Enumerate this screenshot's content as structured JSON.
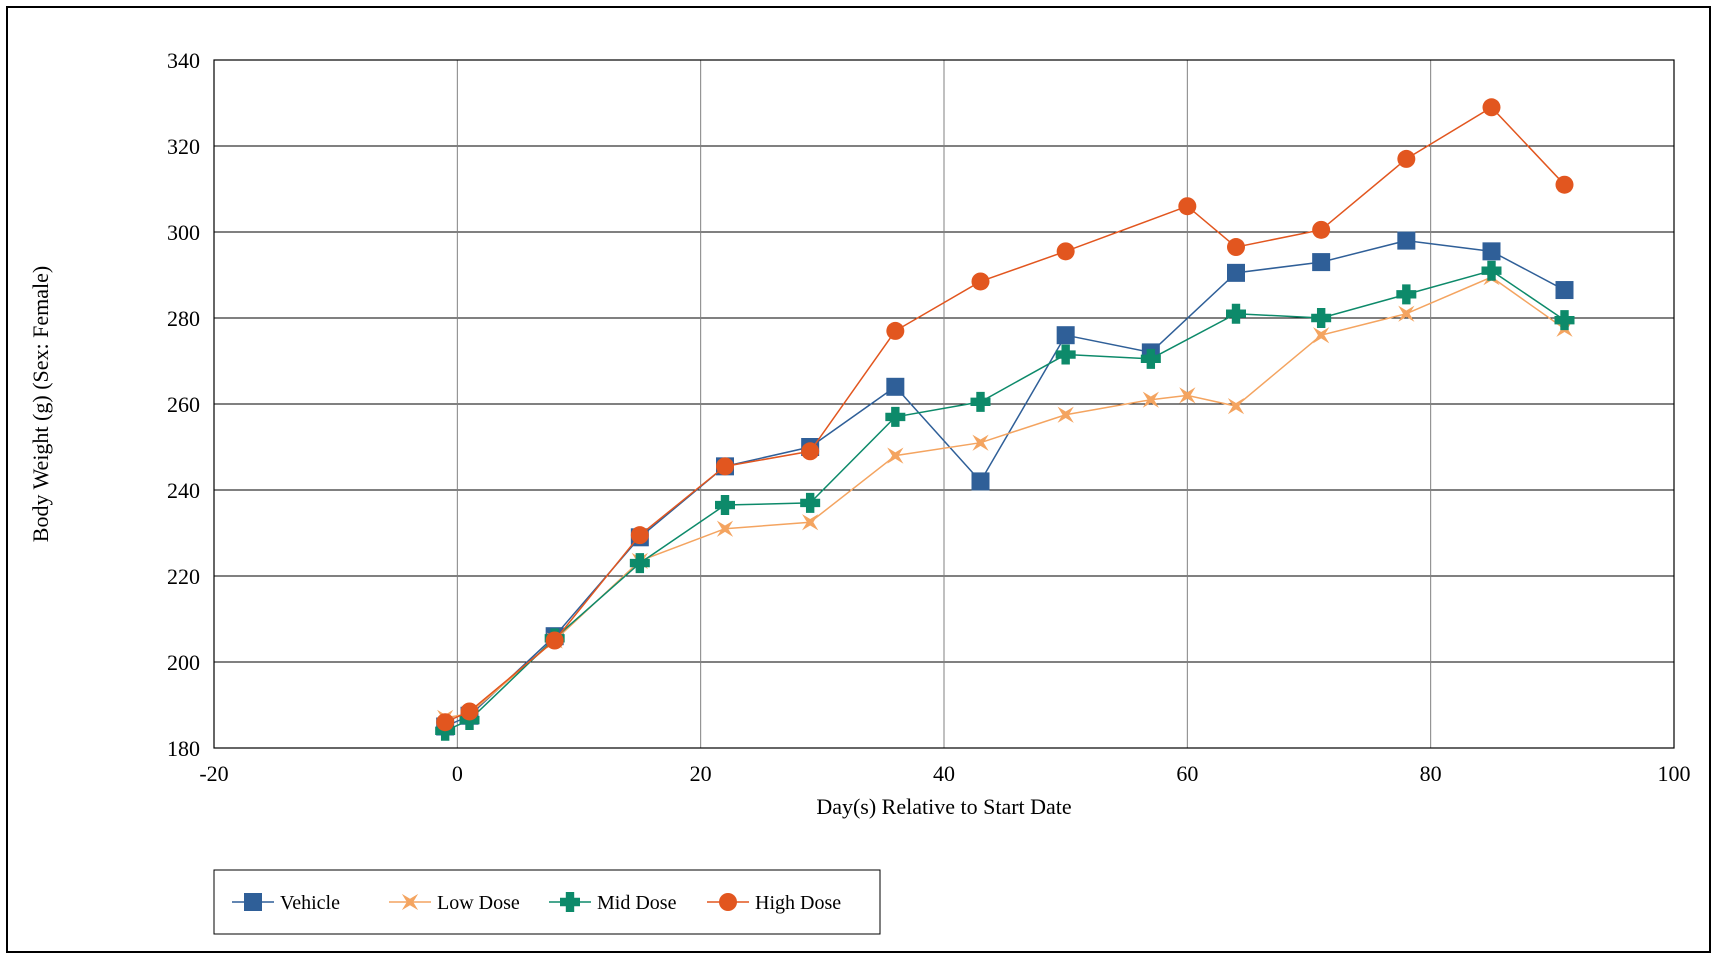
{
  "chart_data": {
    "type": "line",
    "title": "",
    "xlabel": "Day(s) Relative to Start Date",
    "ylabel": "Body Weight (g) (Sex: Female)",
    "xlim": [
      -20,
      100
    ],
    "ylim": [
      180,
      340
    ],
    "xticks": [
      -20,
      0,
      20,
      40,
      60,
      80,
      100
    ],
    "yticks": [
      180,
      200,
      220,
      240,
      260,
      280,
      300,
      320,
      340
    ],
    "grid": true,
    "legend_position": "bottom-left",
    "series": [
      {
        "name": "Vehicle",
        "color": "#2f5f98",
        "marker": "square",
        "x": [
          -1,
          1,
          8,
          15,
          22,
          29,
          36,
          43,
          50,
          57,
          64,
          71,
          78,
          85,
          91
        ],
        "y": [
          185,
          187.5,
          206,
          229,
          245.5,
          250,
          264,
          242,
          276,
          272,
          290.5,
          293,
          298,
          295.5,
          286.5
        ]
      },
      {
        "name": "Low Dose",
        "color": "#f4a460",
        "marker": "star",
        "x": [
          -1,
          1,
          8,
          15,
          22,
          29,
          36,
          43,
          50,
          57,
          60,
          64,
          71,
          78,
          85,
          91
        ],
        "y": [
          187,
          188,
          205,
          223.5,
          231,
          232.5,
          248,
          251,
          257.5,
          261,
          262,
          259.5,
          276,
          281,
          289.5,
          277.5
        ]
      },
      {
        "name": "Mid Dose",
        "color": "#0d8a6a",
        "marker": "plus",
        "x": [
          -1,
          1,
          8,
          15,
          22,
          29,
          36,
          43,
          50,
          57,
          64,
          71,
          78,
          85,
          91
        ],
        "y": [
          184,
          186.5,
          205.5,
          223,
          236.5,
          237,
          257,
          260.5,
          271.5,
          270.5,
          281,
          280,
          285.5,
          291,
          279.5
        ]
      },
      {
        "name": "High Dose",
        "color": "#e2561f",
        "marker": "circle",
        "x": [
          -1,
          1,
          8,
          15,
          22,
          29,
          36,
          43,
          50,
          60,
          64,
          71,
          78,
          85,
          91
        ],
        "y": [
          186,
          188.5,
          205,
          229.5,
          245.5,
          249,
          277,
          288.5,
          295.5,
          306,
          296.5,
          300.5,
          317,
          329,
          311
        ]
      }
    ]
  }
}
